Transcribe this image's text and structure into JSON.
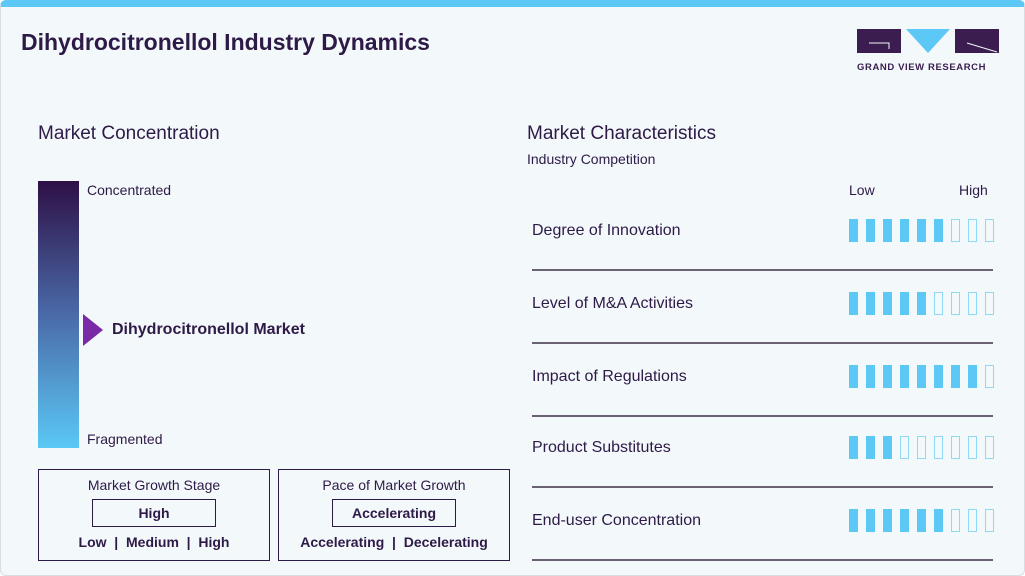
{
  "title": "Dihydrocitronellol Industry Dynamics",
  "logo": {
    "text": "GRAND VIEW RESEARCH"
  },
  "colors": {
    "accent": "#5bc8f5",
    "dark": "#2e1a47",
    "marker": "#7a2aa6"
  },
  "concentration": {
    "heading": "Market Concentration",
    "top": "Concentrated",
    "bottom": "Fragmented",
    "market": "Dihydrocitronellol Market"
  },
  "growth_stage": {
    "title": "Market Growth Stage",
    "value": "High",
    "options": "Low  |  Medium  |  High"
  },
  "pace": {
    "title": "Pace of Market Growth",
    "value": "Accelerating",
    "options": "Accelerating  |  Decelerating"
  },
  "characteristics": {
    "heading": "Market Characteristics",
    "subheading": "Industry Competition",
    "low": "Low",
    "high": "High",
    "rows": [
      {
        "label": "Degree of Innovation",
        "level": 6,
        "max": 9
      },
      {
        "label": "Level of M&A Activities",
        "level": 5,
        "max": 9
      },
      {
        "label": "Impact of Regulations",
        "level": 8,
        "max": 9
      },
      {
        "label": "Product Substitutes",
        "level": 3,
        "max": 9
      },
      {
        "label": "End-user Concentration",
        "level": 6,
        "max": 9
      }
    ]
  }
}
